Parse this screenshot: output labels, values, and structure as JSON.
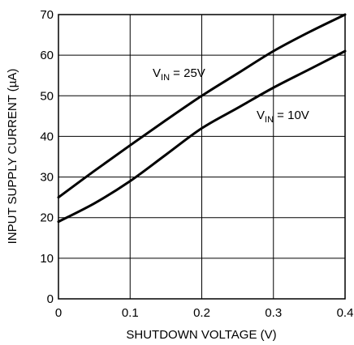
{
  "chart_data": {
    "type": "line",
    "xlabel": "SHUTDOWN VOLTAGE (V)",
    "ylabel": "INPUT SUPPLY CURRENT (µA)",
    "xlim": [
      0,
      0.4
    ],
    "ylim": [
      0,
      70
    ],
    "x_ticks": [
      "0",
      "0.1",
      "0.2",
      "0.3",
      "0.4"
    ],
    "y_ticks": [
      "0",
      "10",
      "20",
      "30",
      "40",
      "50",
      "60",
      "70"
    ],
    "grid": true,
    "series": [
      {
        "name": "VIN = 25V",
        "x": [
          0,
          0.05,
          0.1,
          0.15,
          0.2,
          0.25,
          0.3,
          0.35,
          0.4
        ],
        "values": [
          25,
          31.5,
          37.8,
          44,
          50,
          55.5,
          61,
          65.7,
          70
        ]
      },
      {
        "name": "VIN = 10V",
        "x": [
          0,
          0.05,
          0.1,
          0.15,
          0.2,
          0.25,
          0.3,
          0.35,
          0.4
        ],
        "values": [
          19,
          23.5,
          29,
          35.5,
          42,
          47,
          52,
          56.5,
          61
        ]
      }
    ],
    "annotations": [
      {
        "main": "V",
        "sub": "IN",
        "rest": " = 25V",
        "series": 0
      },
      {
        "main": "V",
        "sub": "IN",
        "rest": " = 10V",
        "series": 1
      }
    ]
  }
}
